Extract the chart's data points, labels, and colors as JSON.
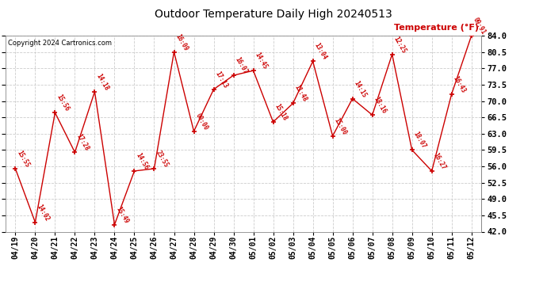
{
  "title": "Outdoor Temperature Daily High 20240513",
  "ylabel": "Temperature (°F)",
  "copyright": "Copyright 2024 Cartronics.com",
  "background_color": "#ffffff",
  "grid_color": "#cccccc",
  "line_color": "#cc0000",
  "text_color": "#cc0000",
  "title_color": "#000000",
  "dates": [
    "04/19",
    "04/20",
    "04/21",
    "04/22",
    "04/23",
    "04/24",
    "04/25",
    "04/26",
    "04/27",
    "04/28",
    "04/29",
    "04/30",
    "05/01",
    "05/02",
    "05/03",
    "05/04",
    "05/05",
    "05/06",
    "05/07",
    "05/08",
    "05/09",
    "05/10",
    "05/11",
    "05/12"
  ],
  "values": [
    55.5,
    44.0,
    67.5,
    59.0,
    72.0,
    43.5,
    55.0,
    55.5,
    80.5,
    63.5,
    72.5,
    75.5,
    76.5,
    65.5,
    69.5,
    78.5,
    62.5,
    70.5,
    67.0,
    80.0,
    59.5,
    55.0,
    71.5,
    84.0
  ],
  "labels": [
    "15:55",
    "14:02",
    "15:56",
    "17:28",
    "14:18",
    "15:49",
    "14:56",
    "23:55",
    "16:09",
    "00:00",
    "17:13",
    "16:07",
    "14:45",
    "15:18",
    "11:48",
    "13:04",
    "15:00",
    "14:15",
    "18:16",
    "12:25",
    "18:07",
    "16:27",
    "16:43",
    "09:91"
  ],
  "ylim_min": 42.0,
  "ylim_max": 84.0,
  "yticks": [
    42.0,
    45.5,
    49.0,
    52.5,
    56.0,
    59.5,
    63.0,
    66.5,
    70.0,
    73.5,
    77.0,
    80.5,
    84.0
  ]
}
